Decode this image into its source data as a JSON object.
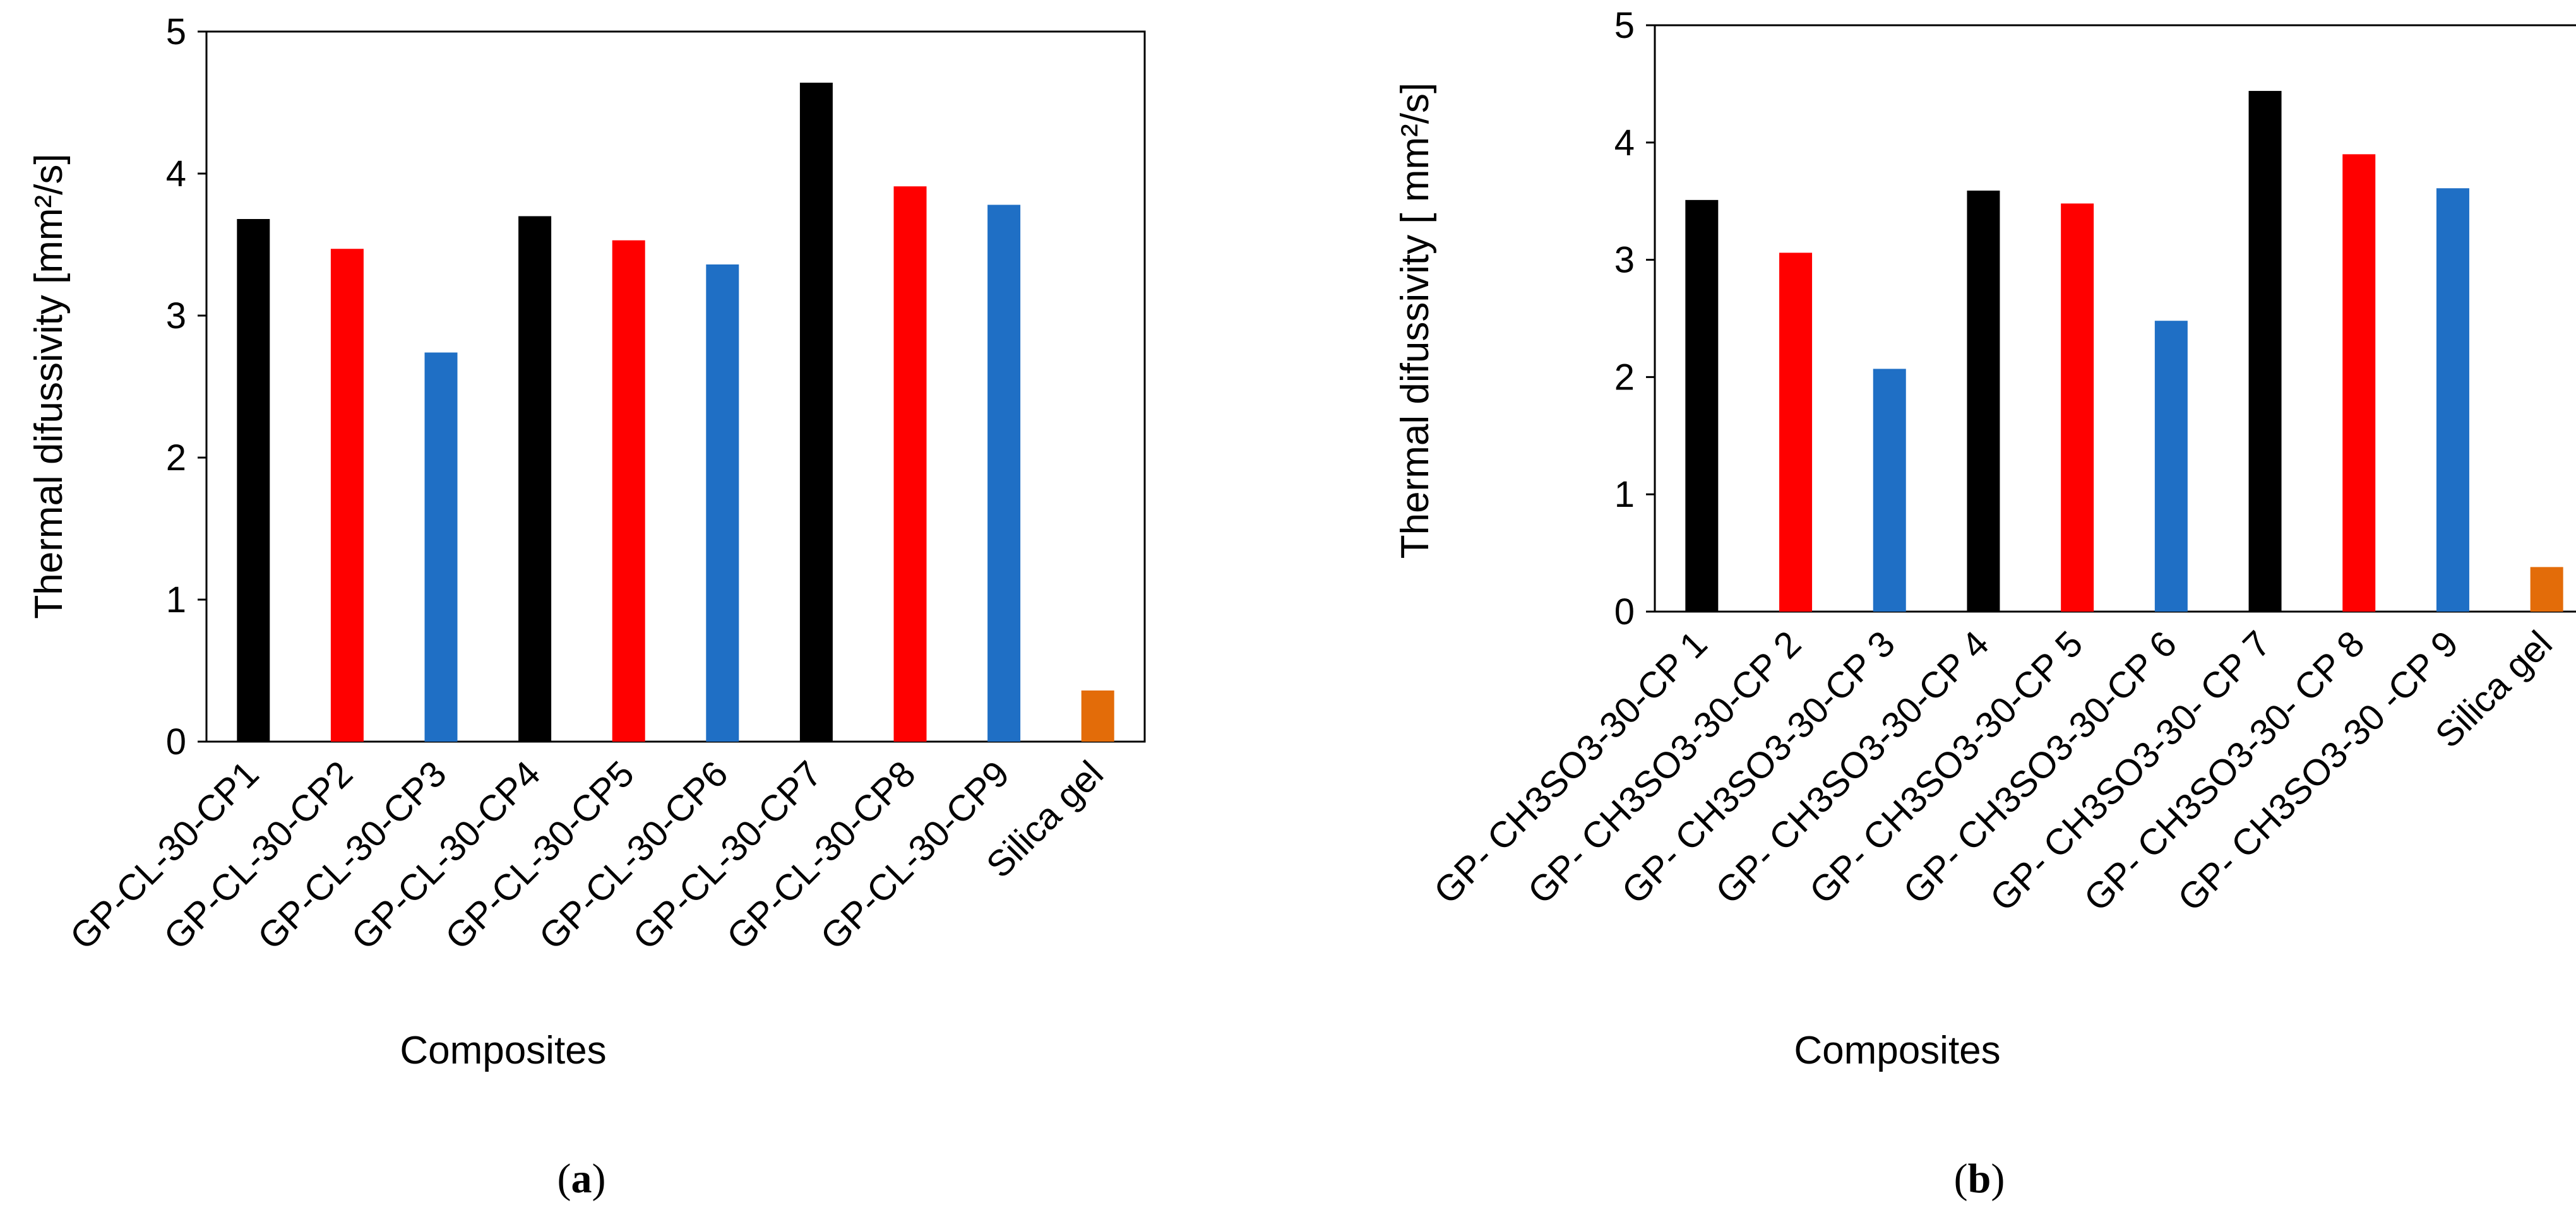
{
  "chart_data": [
    {
      "type": "bar",
      "panel": "a",
      "categories": [
        "GP-CL-30-CP1",
        "GP-CL-30-CP2",
        "GP-CL-30-CP3",
        "GP-CL-30-CP4",
        "GP-CL-30-CP5",
        "GP-CL-30-CP6",
        "GP-CL-30-CP7",
        "GP-CL-30-CP8",
        "GP-CL-30-CP9",
        "Silica gel"
      ],
      "values": [
        3.68,
        3.47,
        2.74,
        3.7,
        3.53,
        3.36,
        4.64,
        3.91,
        3.78,
        0.36
      ],
      "colors": [
        "#000000",
        "#ff0000",
        "#1f6fc5",
        "#000000",
        "#ff0000",
        "#1f6fc5",
        "#000000",
        "#ff0000",
        "#1f6fc5",
        "#e36c09"
      ],
      "xlabel": "Composites",
      "ylabel": "Thermal difussivity [mm²/s]",
      "ylim": [
        0,
        5
      ],
      "yticks": [
        "0",
        "1",
        "2",
        "3",
        "4",
        "5"
      ],
      "caption": {
        "open": "(",
        "letter": "a",
        "close": ")"
      }
    },
    {
      "type": "bar",
      "panel": "b",
      "categories": [
        "GP- CH3SO3-30-CP 1",
        "GP- CH3SO3-30-CP 2",
        "GP- CH3SO3-30-CP 3",
        "GP- CH3SO3-30-CP 4",
        "GP- CH3SO3-30-CP 5",
        "GP- CH3SO3-30-CP 6",
        "GP- CH3SO3-30- CP 7",
        "GP- CH3SO3-30- CP 8",
        "GP- CH3SO3-30 -CP 9",
        "Silica gel"
      ],
      "values": [
        3.51,
        3.06,
        2.07,
        3.59,
        3.48,
        2.48,
        4.44,
        3.9,
        3.61,
        0.38
      ],
      "colors": [
        "#000000",
        "#ff0000",
        "#1f6fc5",
        "#000000",
        "#ff0000",
        "#1f6fc5",
        "#000000",
        "#ff0000",
        "#1f6fc5",
        "#e36c09"
      ],
      "xlabel": "Composites",
      "ylabel": "Thermal difussivity [ mm²/s]",
      "ylim": [
        0,
        5
      ],
      "yticks": [
        "0",
        "1",
        "2",
        "3",
        "4",
        "5"
      ],
      "caption": {
        "open": "(",
        "letter": "b",
        "close": ")"
      }
    }
  ]
}
